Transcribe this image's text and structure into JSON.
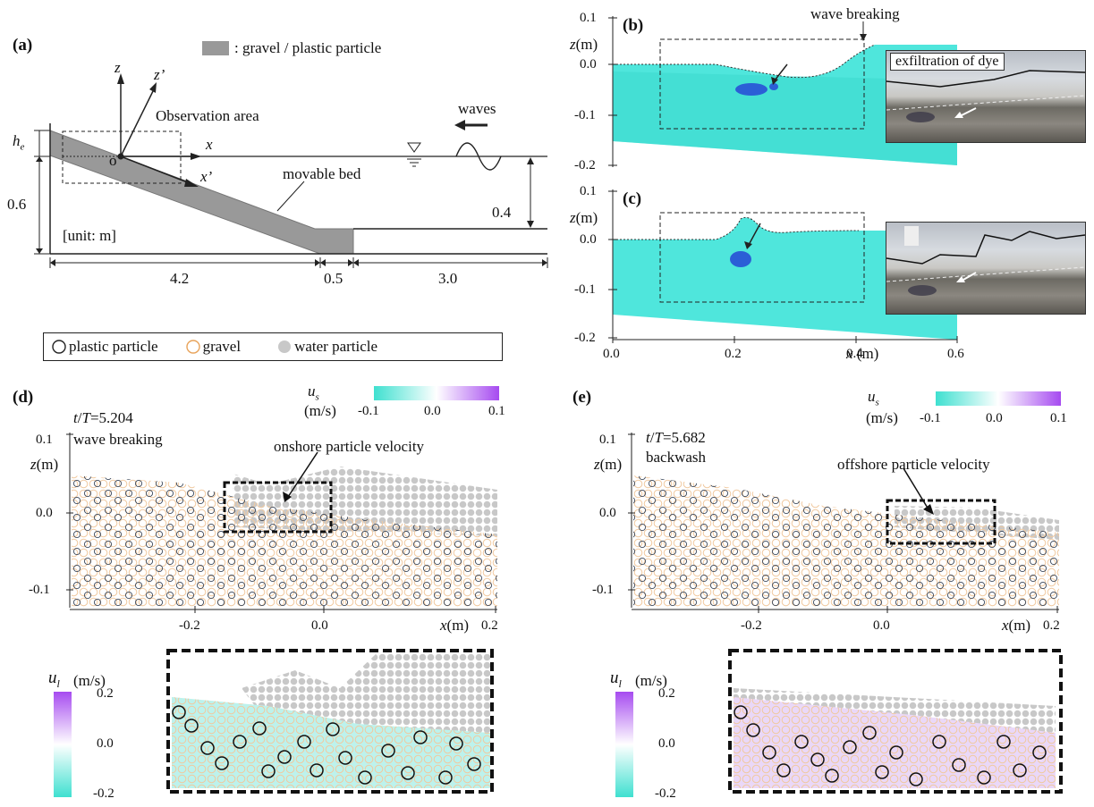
{
  "panel_a": {
    "label": "(a)",
    "legend_text": ": gravel / plastic particle",
    "z": "z",
    "z_prime": "z’",
    "x": "x",
    "x_prime": "x’",
    "origin": "o",
    "he": "h",
    "he_sub": "e",
    "observation_area": "Observation area",
    "waves": "waves",
    "movable_bed": "movable bed",
    "unit": "[unit: m]",
    "dims": [
      "0.6",
      "0.4",
      "4.2",
      "0.5",
      "3.0"
    ]
  },
  "panel_b": {
    "label": "(b)",
    "wave_breaking": "wave breaking",
    "photo_caption": "exfiltration of dye",
    "y_axis": "z(m)",
    "y_ticks": [
      "0.1",
      "0.0",
      "-0.1",
      "-0.2"
    ]
  },
  "panel_c": {
    "label": "(c)",
    "y_axis": "z(m)",
    "y_ticks": [
      "0.1",
      "0.0",
      "-0.1",
      "-0.2"
    ],
    "x_ticks": [
      "0.0",
      "0.2",
      "0.4",
      "0.6"
    ],
    "x_axis": "x (m)"
  },
  "legend": {
    "plastic": "plastic particle",
    "gravel": "gravel",
    "water": "water particle"
  },
  "panel_d": {
    "label": "(d)",
    "time": "t/T=5.204",
    "state": "wave breaking",
    "annotation": "onshore particle velocity",
    "y_axis": "z(m)",
    "y_ticks": [
      "0.1",
      "0.0",
      "-0.1"
    ],
    "x_ticks": [
      "-0.2",
      "0.0",
      "0.2"
    ],
    "x_axis": "x(m)",
    "us_label": "u",
    "us_sub": "s",
    "us_units": "(m/s)",
    "us_ticks": [
      "-0.1",
      "0.0",
      "0.1"
    ],
    "ul_label": "u",
    "ul_sub": "l",
    "ul_units": "(m/s)",
    "ul_ticks": [
      "0.2",
      "0.0",
      "-0.2"
    ]
  },
  "panel_e": {
    "label": "(e)",
    "time": "t/T=5.682",
    "state": "backwash",
    "annotation": "offshore particle velocity",
    "y_axis": "z(m)",
    "y_ticks": [
      "0.1",
      "0.0",
      "-0.1"
    ],
    "x_ticks": [
      "-0.2",
      "0.0",
      "0.2"
    ],
    "x_axis": "x(m)",
    "us_label": "u",
    "us_sub": "s",
    "us_units": "(m/s)",
    "us_ticks": [
      "-0.1",
      "0.0",
      "0.1"
    ],
    "ul_label": "u",
    "ul_sub": "l",
    "ul_units": "(m/s)",
    "ul_ticks": [
      "0.2",
      "0.0",
      "-0.2"
    ]
  },
  "colors": {
    "water_sim": "#4fe6dc",
    "dye": "#2b5fd6",
    "gravel": "#e8a35a",
    "plastic": "#222222",
    "water_particle": "#c8c8c8",
    "cmap_low": "#3fe0d0",
    "cmap_mid": "#ffffff",
    "cmap_high": "#a64bf0"
  }
}
